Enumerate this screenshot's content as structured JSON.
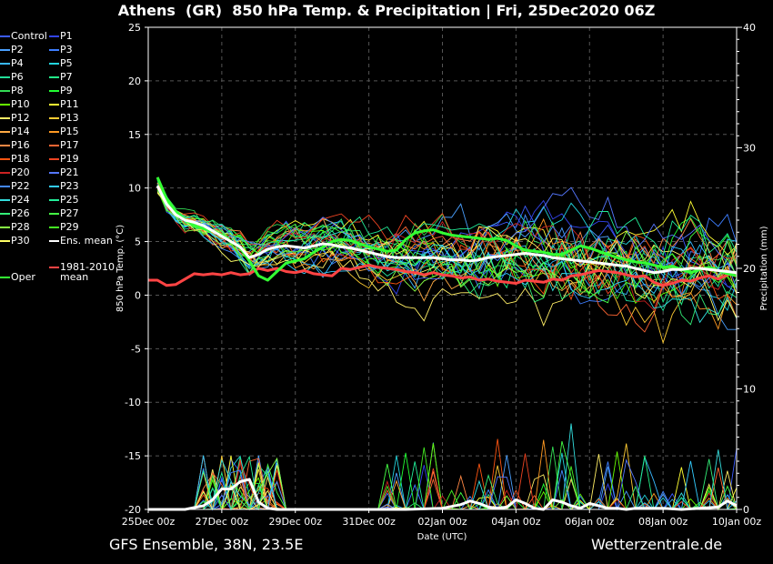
{
  "title": "Athens  (GR)  850 hPa Temp. & Precipitation | Fri, 25Dec2020 06Z",
  "footer": {
    "left": "GFS Ensemble, 38N, 23.5E",
    "right": "Wetterzentrale.de"
  },
  "chart_data": {
    "type": "line",
    "xlabel": "Date (UTC)",
    "ylabel_left": "850 hPa Temp. (°C)",
    "ylabel_right": "Precipitation (mm)",
    "x_ticks": [
      "25Dec 00z",
      "27Dec 00z",
      "29Dec 00z",
      "31Dec 00z",
      "02Jan 00z",
      "04Jan 00z",
      "06Jan 00z",
      "08Jan 00z",
      "10Jan 00z"
    ],
    "x_range_hours": [
      0,
      384
    ],
    "y_left_range": [
      -20,
      25
    ],
    "y_left_ticks": [
      25,
      20,
      15,
      10,
      5,
      0,
      -5,
      -10,
      -15,
      -20
    ],
    "y_right_range": [
      0,
      40
    ],
    "y_right_ticks": [
      40,
      30,
      20,
      10,
      0
    ],
    "grid": true,
    "legend": [
      "Control",
      "P1",
      "P2",
      "P3",
      "P4",
      "P5",
      "P6",
      "P7",
      "P8",
      "P9",
      "P10",
      "P11",
      "P12",
      "P13",
      "P14",
      "P15",
      "P16",
      "P17",
      "P18",
      "P19",
      "P20",
      "P21",
      "P22",
      "P23",
      "P24",
      "P25",
      "P26",
      "P27",
      "P28",
      "P29",
      "P30",
      "Ens. mean",
      "Oper",
      "1981-2010 mean"
    ],
    "legend_colors": [
      "#3c5cff",
      "#3344ee",
      "#4aa0ff",
      "#3d7eff",
      "#38b8ff",
      "#22d4dd",
      "#22dd99",
      "#22ee88",
      "#33dd55",
      "#22ff33",
      "#66ff00",
      "#ffff33",
      "#ffee66",
      "#ffcc33",
      "#ffaa44",
      "#ff9922",
      "#ff8844",
      "#ff6633",
      "#ff5511",
      "#ee4422",
      "#cc2222",
      "#5577ff",
      "#4488ff",
      "#33ccff",
      "#33dddd",
      "#22ee99",
      "#33ee77",
      "#44ff44",
      "#88ff44",
      "#44ee22",
      "#ffff66",
      "#ffffff",
      "#33ff33",
      "#ff4444"
    ],
    "ens_mean": {
      "x_hours": [
        6,
        12,
        18,
        24,
        30,
        36,
        42,
        48,
        54,
        60,
        66,
        72,
        78,
        84,
        90,
        96,
        102,
        108,
        114,
        120,
        126,
        132,
        138,
        144,
        150,
        156,
        162,
        168,
        174,
        180,
        186,
        192,
        198,
        204,
        210,
        216,
        222,
        228,
        234,
        240,
        246,
        252,
        258,
        264,
        270,
        276,
        282,
        288,
        294,
        300,
        306,
        312,
        318,
        324,
        330,
        336,
        342,
        348,
        354,
        360,
        366,
        372,
        378,
        384
      ],
      "temp": [
        10.2,
        8.5,
        7.5,
        7,
        6.8,
        6.5,
        6,
        5.5,
        5,
        4.5,
        3.5,
        3.8,
        4.3,
        4.5,
        4.6,
        4.5,
        4.4,
        4.6,
        4.8,
        4.7,
        4.5,
        4.4,
        4.2,
        4,
        3.8,
        3.6,
        3.5,
        3.5,
        3.5,
        3.5,
        3.5,
        3.4,
        3.3,
        3.3,
        3.2,
        3.3,
        3.5,
        3.6,
        3.7,
        3.8,
        3.9,
        3.8,
        3.7,
        3.5,
        3.4,
        3.3,
        3.2,
        3.1,
        3,
        2.9,
        2.8,
        2.7,
        2.5,
        2.3,
        2.1,
        2.2,
        2.4,
        2.4,
        2.5,
        2.5,
        2.4,
        2.3,
        2.2,
        2.1
      ]
    },
    "oper": {
      "x_hours": [
        6,
        12,
        18,
        24,
        30,
        36,
        42,
        48,
        54,
        60,
        66,
        72,
        78,
        84,
        90,
        96,
        102,
        108,
        114,
        120,
        126,
        132,
        138,
        144,
        150,
        156,
        162,
        168,
        174,
        180,
        186,
        192,
        198,
        204,
        210,
        216,
        222,
        228,
        234,
        240,
        246,
        252,
        258,
        264,
        270,
        276,
        282,
        288,
        294,
        300,
        306,
        312,
        318,
        324,
        330,
        336,
        342,
        348,
        354,
        360,
        366,
        372,
        378,
        384
      ],
      "temp": [
        11,
        9,
        7.8,
        7,
        6.5,
        6.2,
        6,
        5.6,
        5,
        4.4,
        3.2,
        1.8,
        1.4,
        2.2,
        3,
        3.2,
        3.4,
        4,
        4.5,
        5,
        5.2,
        5.1,
        4.8,
        4.5,
        4.3,
        4.1,
        4.2,
        5.2,
        5.8,
        6,
        6.1,
        5.8,
        5.6,
        5.5,
        5.4,
        5.3,
        5.2,
        5.3,
        5.1,
        4.6,
        4.2,
        4.1,
        4,
        3.8,
        3.8,
        4.2,
        4.6,
        4.4,
        4.1,
        3.8,
        3.5,
        3.3,
        3.1,
        3,
        2.8,
        2.6,
        2.7,
        2.4,
        2.1,
        2.4,
        2.6,
        2.3,
        2,
        1.8
      ]
    },
    "climate_mean": {
      "x_hours": [
        0,
        6,
        12,
        18,
        24,
        30,
        36,
        42,
        48,
        54,
        60,
        66,
        72,
        78,
        84,
        90,
        96,
        102,
        108,
        114,
        120,
        126,
        132,
        138,
        144,
        150,
        156,
        162,
        168,
        174,
        180,
        186,
        192,
        198,
        204,
        210,
        216,
        222,
        228,
        234,
        240,
        246,
        252,
        258,
        264,
        270,
        276,
        282,
        288,
        294,
        300,
        306,
        312,
        318,
        324,
        330,
        336,
        342,
        348,
        354,
        360,
        366,
        372,
        378,
        384
      ],
      "temp": [
        1.4,
        1.4,
        0.9,
        1,
        1.5,
        2,
        1.9,
        2,
        1.9,
        2.1,
        1.9,
        2,
        2.5,
        2.3,
        2.5,
        2.2,
        2.1,
        2.3,
        2,
        1.9,
        1.8,
        2.5,
        2.4,
        2.6,
        2.8,
        2.6,
        2.5,
        2.4,
        2.2,
        2.1,
        1.9,
        2.1,
        1.9,
        1.8,
        1.6,
        1.7,
        1.4,
        1.5,
        1.3,
        1.2,
        1.1,
        1.4,
        1.3,
        1.2,
        1.5,
        1.4,
        1.8,
        1.9,
        2.1,
        2.3,
        2.2,
        2.1,
        1.9,
        1.7,
        1.8,
        1.2,
        0.9,
        1.1,
        1.4,
        1.3,
        1.6,
        1.8,
        1.5,
        1.9,
        2
      ]
    },
    "ens_mean_precip": {
      "x_hours": [
        0,
        24,
        36,
        42,
        48,
        54,
        60,
        66,
        72,
        78,
        84,
        96,
        120,
        144,
        168,
        192,
        204,
        210,
        216,
        222,
        228,
        234,
        240,
        246,
        252,
        258,
        264,
        270,
        276,
        282,
        288,
        294,
        300,
        306,
        312,
        318,
        324,
        336,
        348,
        360,
        372,
        378,
        384
      ],
      "mm": [
        0,
        0,
        0.3,
        0.8,
        1.7,
        1.7,
        2.3,
        2.5,
        0.6,
        0.1,
        0,
        0,
        0,
        0,
        0,
        0.1,
        0.4,
        0.7,
        0.5,
        0.2,
        0.1,
        0.2,
        0.8,
        0.5,
        0.1,
        0,
        0.8,
        0.6,
        0.3,
        0.1,
        0.5,
        0.3,
        0.1,
        0.1,
        0,
        0.1,
        0.1,
        0.1,
        0,
        0.1,
        0.2,
        0.7,
        0.3
      ]
    }
  }
}
